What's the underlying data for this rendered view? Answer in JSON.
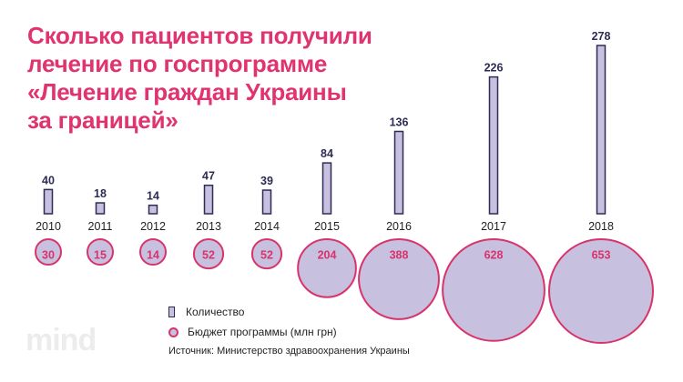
{
  "title_lines": [
    "Сколько пациентов получили",
    "лечение по госпрограмме",
    "«Лечение граждан Украины",
    "за границей»"
  ],
  "chart_data": {
    "type": "bar",
    "title": "Сколько пациентов получили лечение по госпрограмме «Лечение граждан Украины за границей»",
    "categories": [
      "2010",
      "2011",
      "2012",
      "2013",
      "2014",
      "2015",
      "2016",
      "2017",
      "2018"
    ],
    "series": [
      {
        "name": "Количество",
        "kind": "bar",
        "values": [
          40,
          18,
          14,
          47,
          39,
          84,
          136,
          226,
          278
        ]
      },
      {
        "name": "Бюджет программы (млн грн)",
        "kind": "bubble",
        "values": [
          30,
          15,
          14,
          52,
          52,
          204,
          388,
          628,
          653
        ]
      }
    ],
    "colors": {
      "bar_fill": "#c7c0de",
      "bar_stroke": "#2c2c54",
      "circle_fill": "#c7c0de",
      "circle_stroke": "#d9336c",
      "label_dark": "#2c2c54",
      "label_pink": "#d9336c",
      "title": "#e0336f"
    }
  },
  "legend": {
    "count_label": "Количество",
    "budget_label": "Бюджет программы (млн грн)"
  },
  "source": "Источник: Министерство здравоохранения Украины",
  "logo": "mind"
}
